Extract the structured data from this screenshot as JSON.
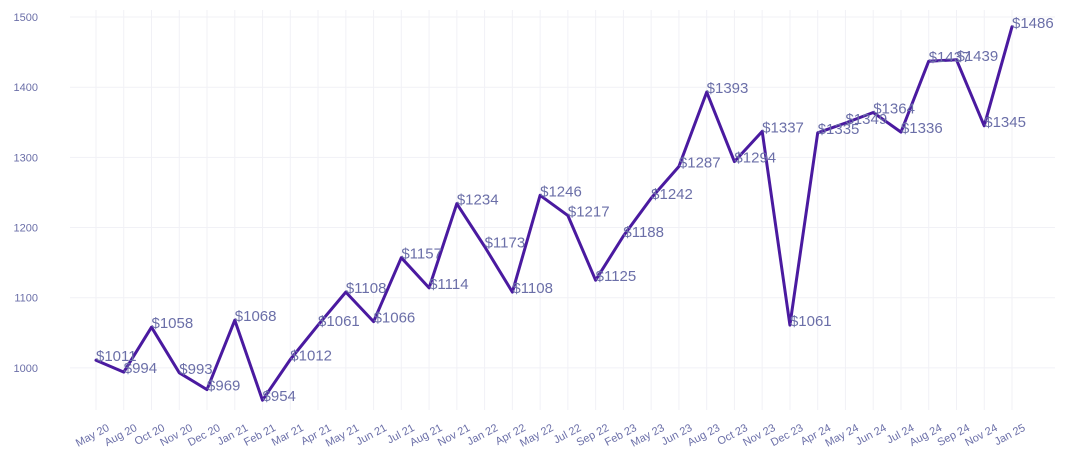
{
  "chart_data": {
    "type": "line",
    "title": "",
    "xlabel": "",
    "ylabel": "",
    "ylim": [
      940,
      1510
    ],
    "yticks": [
      1000,
      1100,
      1200,
      1300,
      1400,
      1500
    ],
    "grid": true,
    "legend": "none",
    "line_color": "#4a1aa0",
    "label_color": "#6b6fa8",
    "grid_color": "#f1f1f6",
    "categories": [
      "May 20",
      "Aug 20",
      "Oct 20",
      "Nov 20",
      "Dec 20",
      "Jan 21",
      "Feb 21",
      "Mar 21",
      "Apr 21",
      "May 21",
      "Jun 21",
      "Jul 21",
      "Aug 21",
      "Nov 21",
      "Jan 22",
      "Apr 22",
      "May 22",
      "Jul 22",
      "Sep 22",
      "Feb 23",
      "May 23",
      "Jun 23",
      "Aug 23",
      "Oct 23",
      "Nov 23",
      "Dec 23",
      "Apr 24",
      "May 24",
      "Jun 24",
      "Jul 24",
      "Aug 24",
      "Sep 24",
      "Nov 24",
      "Jan 25"
    ],
    "values": [
      1011,
      994,
      1058,
      993,
      969,
      1068,
      954,
      1012,
      1061,
      1108,
      1066,
      1157,
      1114,
      1234,
      1173,
      1108,
      1246,
      1217,
      1125,
      1188,
      1242,
      1287,
      1393,
      1294,
      1337,
      1061,
      1335,
      1349,
      1364,
      1336,
      1437,
      1439,
      1345,
      1486
    ],
    "labels": [
      "$1011",
      "$994",
      "$1058",
      "$993",
      "$969",
      "$1068",
      "$954",
      "$1012",
      "$1061",
      "$1108",
      "$1066",
      "$1157",
      "$1114",
      "$1234",
      "$1173",
      "$1108",
      "$1246",
      "$1217",
      "$1125",
      "$1188",
      "$1242",
      "$1287",
      "$1393",
      "$1294",
      "$1337",
      "$1061",
      "$1335",
      "$1349",
      "$1364",
      "$1336",
      "$1437",
      "$1439",
      "$1345",
      "$1486"
    ]
  }
}
